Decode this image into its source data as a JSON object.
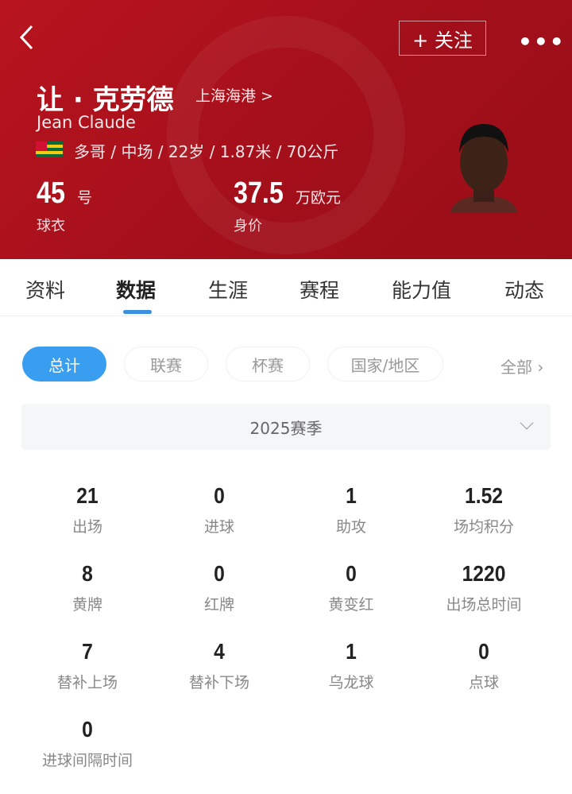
{
  "header": {
    "follow_label": "+ 关注",
    "more_label": "•••",
    "name_cn": "让 · 克劳德",
    "team": "上海海港 >",
    "name_en": "Jean Claude",
    "flag": "togo-flag",
    "info": "多哥 / 中场 / 22岁 / 1.87米 / 70公斤",
    "shirt_number": "45",
    "shirt_unit": "号",
    "shirt_label": "球衣",
    "value": "37.5",
    "value_unit": "万欧元",
    "value_label": "身价"
  },
  "tabs": [
    {
      "label": "资料"
    },
    {
      "label": "数据",
      "active": true
    },
    {
      "label": "生涯"
    },
    {
      "label": "赛程"
    },
    {
      "label": "能力值"
    },
    {
      "label": "动态"
    }
  ],
  "filters": [
    {
      "label": "总计",
      "active": true
    },
    {
      "label": "联赛"
    },
    {
      "label": "杯赛"
    },
    {
      "label": "国家/地区"
    }
  ],
  "filters_all": "全部 ›",
  "season": "2025赛季",
  "stats": [
    {
      "value": "21",
      "label": "出场"
    },
    {
      "value": "0",
      "label": "进球"
    },
    {
      "value": "1",
      "label": "助攻"
    },
    {
      "value": "1.52",
      "label": "场均积分"
    },
    {
      "value": "8",
      "label": "黄牌"
    },
    {
      "value": "0",
      "label": "红牌"
    },
    {
      "value": "0",
      "label": "黄变红"
    },
    {
      "value": "1220",
      "label": "出场总时间"
    },
    {
      "value": "7",
      "label": "替补上场"
    },
    {
      "value": "4",
      "label": "替补下场"
    },
    {
      "value": "1",
      "label": "乌龙球"
    },
    {
      "value": "0",
      "label": "点球"
    },
    {
      "value": "0",
      "label": "进球间隔时间"
    }
  ],
  "colors": {
    "header_red": "#b0141e",
    "accent_blue": "#3a9ef0"
  }
}
